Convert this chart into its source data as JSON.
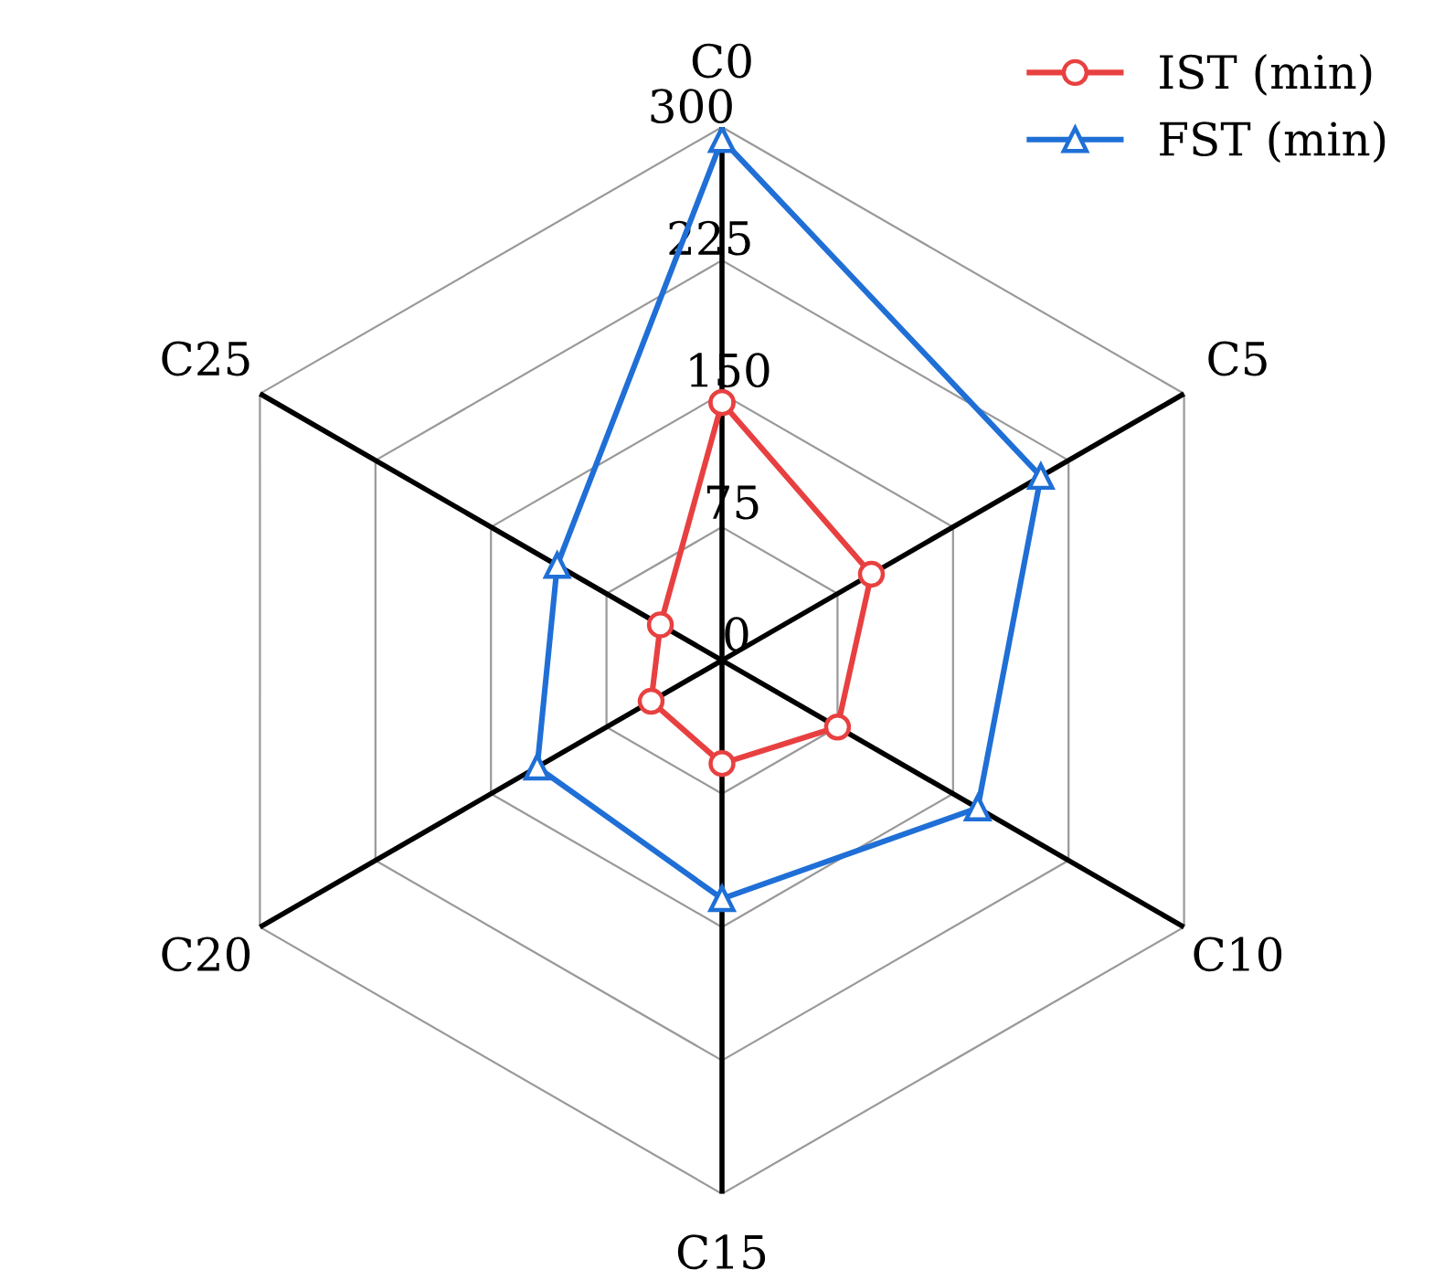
{
  "chart_data": {
    "type": "radar",
    "categories": [
      "C0",
      "C5",
      "C10",
      "C15",
      "C20",
      "C25"
    ],
    "series": [
      {
        "name": "IST (min)",
        "color": "#e84040",
        "marker": "circle",
        "values": [
          145,
          97,
          75,
          58,
          46,
          40
        ]
      },
      {
        "name": "FST (min)",
        "color": "#1f6fd6",
        "marker": "triangle",
        "values": [
          293,
          207,
          166,
          134,
          120,
          107
        ]
      }
    ],
    "ylim": [
      0,
      300
    ],
    "yticks": [
      0,
      75,
      150,
      225,
      300
    ],
    "grid": true,
    "legend": "top right"
  }
}
